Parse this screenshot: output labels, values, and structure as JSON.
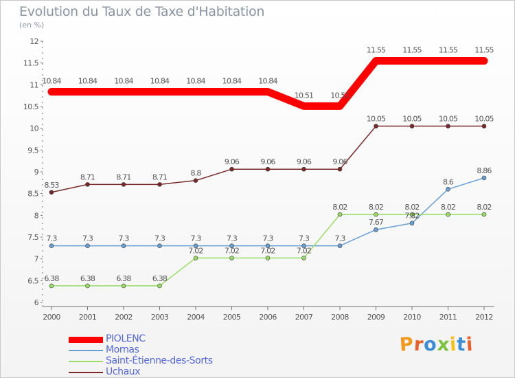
{
  "title": "Evolution du Taux de Taxe d'Habitation",
  "subtitle": "(en %)",
  "logo": {
    "text": "Proxiti",
    "colors": [
      "#f29a1e",
      "#e8612c",
      "#3c8dd6",
      "#7cc242",
      "#f4c215",
      "#3c8dd6",
      "#e8612c"
    ]
  },
  "chart_data": {
    "type": "line",
    "title": "Evolution du Taux de Taxe d'Habitation",
    "subtitle": "(en %)",
    "xlabel": "",
    "ylabel": "(en %)",
    "ylim": [
      6,
      12
    ],
    "grid": false,
    "legend_position": "bottom-left",
    "x": [
      "2000",
      "2001",
      "2002",
      "2003",
      "2004",
      "2005",
      "2006",
      "2007",
      "2008",
      "2009",
      "2010",
      "2011",
      "2012"
    ],
    "y_ticks": [
      "6",
      "6.5",
      "7",
      "7.5",
      "8",
      "8.5",
      "9",
      "9.5",
      "10",
      "10.5",
      "11",
      "11.5",
      "12"
    ],
    "series": [
      {
        "name": "PIOLENC",
        "color": "#ff0000",
        "values": [
          10.84,
          10.84,
          10.84,
          10.84,
          10.84,
          10.84,
          10.84,
          10.51,
          10.51,
          11.55,
          11.55,
          11.55,
          11.55
        ],
        "labels": [
          "10.84",
          "10.84",
          "10.84",
          "10.84",
          "10.84",
          "10.84",
          "10.84",
          "10.51",
          "10.51",
          "11.55",
          "11.55",
          "11.55",
          "11.55"
        ]
      },
      {
        "name": "Mornas",
        "color": "#6a9fd1",
        "values": [
          7.3,
          7.3,
          7.3,
          7.3,
          7.3,
          7.3,
          7.3,
          7.3,
          7.3,
          7.67,
          7.82,
          8.6,
          8.86
        ],
        "labels": [
          "7.3",
          "7.3",
          "7.3",
          "7.3",
          "7.3",
          "7.3",
          "7.3",
          "7.3",
          "7.3",
          "7.67",
          "7.82",
          "8.6",
          "8.86"
        ]
      },
      {
        "name": "Saint-Étienne-des-Sorts",
        "color": "#99dd66",
        "values": [
          6.38,
          6.38,
          6.38,
          6.38,
          7.02,
          7.02,
          7.02,
          7.02,
          8.02,
          8.02,
          8.02,
          8.02,
          8.02
        ],
        "labels": [
          "6.38",
          "6.38",
          "6.38",
          "6.38",
          "7.02",
          "7.02",
          "7.02",
          "7.02",
          "8.02",
          "8.02",
          "8.02",
          "8.02",
          "8.02"
        ]
      },
      {
        "name": "Uchaux",
        "color": "#7a2a2a",
        "values": [
          8.53,
          8.71,
          8.71,
          8.71,
          8.8,
          9.06,
          9.06,
          9.06,
          9.06,
          10.05,
          10.05,
          10.05,
          10.05
        ],
        "labels": [
          "8.53",
          "8.71",
          "8.71",
          "8.71",
          "8.8",
          "9.06",
          "9.06",
          "9.06",
          "9.06",
          "10.05",
          "10.05",
          "10.05",
          "10.05"
        ]
      }
    ]
  }
}
